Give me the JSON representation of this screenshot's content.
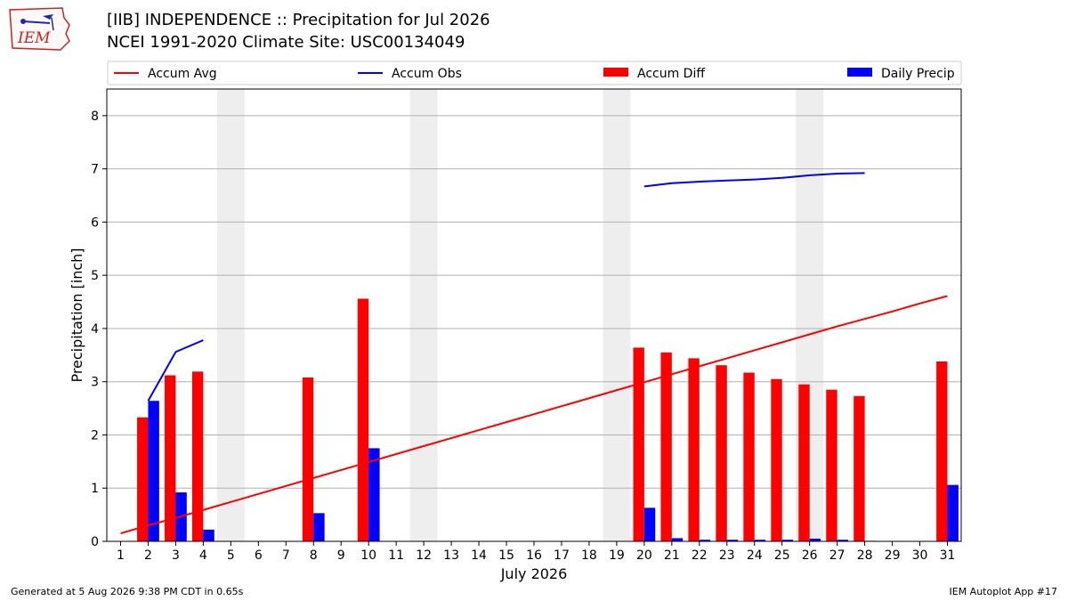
{
  "header": {
    "title_line1": "[IIB] INDEPENDENCE :: Precipitation for Jul 2026",
    "title_line2": "NCEI 1991-2020 Climate Site: USC00134049"
  },
  "logo": {
    "text": "IEM"
  },
  "footer": {
    "left": "Generated at 5 Aug 2026 9:38 PM CDT in 0.65s",
    "right": "IEM Autoplot App #17"
  },
  "chart_data": {
    "type": "bar",
    "xlabel": "July 2026",
    "ylabel": "Precipitation [inch]",
    "xlim": [
      0.5,
      31.5
    ],
    "ylim": [
      0,
      8.5
    ],
    "yticks": [
      0,
      1,
      2,
      3,
      4,
      5,
      6,
      7,
      8
    ],
    "x": [
      1,
      2,
      3,
      4,
      5,
      6,
      7,
      8,
      9,
      10,
      11,
      12,
      13,
      14,
      15,
      16,
      17,
      18,
      19,
      20,
      21,
      22,
      23,
      24,
      25,
      26,
      27,
      28,
      29,
      30,
      31
    ],
    "grid": "y",
    "legend_position": "top",
    "weekend_shading": [
      [
        4.5,
        5.5
      ],
      [
        11.5,
        12.5
      ],
      [
        18.5,
        19.5
      ],
      [
        25.5,
        26.5
      ]
    ],
    "colors": {
      "accum_avg": "#ff0000",
      "accum_obs": "#0000ff",
      "accum_diff": "#ff0000",
      "daily_precip": "#0000ff",
      "shade": "#eeeeee"
    },
    "series": [
      {
        "name": "Accum Avg",
        "kind": "line",
        "values": [
          0.15,
          0.3,
          0.44,
          0.59,
          0.74,
          0.89,
          1.04,
          1.19,
          1.34,
          1.49,
          1.64,
          1.79,
          1.94,
          2.09,
          2.24,
          2.39,
          2.54,
          2.69,
          2.84,
          2.99,
          3.14,
          3.29,
          3.44,
          3.59,
          3.74,
          3.89,
          4.04,
          4.18,
          4.32,
          4.47,
          4.61
        ]
      },
      {
        "name": "Accum Obs",
        "kind": "line",
        "values": [
          null,
          2.64,
          3.56,
          3.78,
          null,
          null,
          null,
          null,
          null,
          null,
          null,
          null,
          null,
          null,
          null,
          null,
          null,
          null,
          null,
          6.67,
          6.73,
          6.76,
          6.78,
          6.8,
          6.83,
          6.88,
          6.91,
          6.92,
          null,
          null,
          null
        ]
      },
      {
        "name": "Accum Diff",
        "kind": "bar",
        "values": [
          0,
          2.33,
          3.12,
          3.19,
          0,
          0,
          0,
          3.08,
          0,
          4.56,
          0,
          0,
          0,
          0,
          0,
          0,
          0,
          0,
          0,
          3.64,
          3.55,
          3.44,
          3.31,
          3.17,
          3.05,
          2.95,
          2.85,
          2.73,
          0,
          0,
          3.38
        ]
      },
      {
        "name": "Daily Precip",
        "kind": "bar",
        "values": [
          0,
          2.64,
          0.92,
          0.22,
          0,
          0,
          0,
          0.53,
          0,
          1.75,
          0,
          0,
          0,
          0,
          0,
          0,
          0,
          0,
          0,
          0.63,
          0.06,
          0.03,
          0.03,
          0.03,
          0.03,
          0.05,
          0.03,
          0.01,
          0,
          0,
          1.06
        ]
      }
    ]
  }
}
